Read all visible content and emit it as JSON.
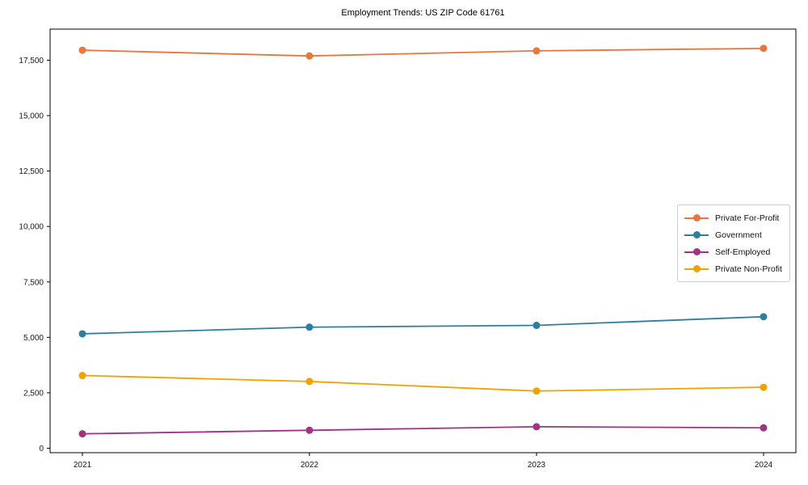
{
  "chart_data": {
    "type": "line",
    "title": "Employment Trends: US ZIP Code 61761",
    "x": [
      "2021",
      "2022",
      "2023",
      "2024"
    ],
    "series": [
      {
        "name": "Private For-Profit",
        "color": "#e8763d",
        "values": [
          17950,
          17690,
          17920,
          18030
        ]
      },
      {
        "name": "Government",
        "color": "#2d7f9e",
        "values": [
          5160,
          5460,
          5540,
          5930
        ]
      },
      {
        "name": "Self-Employed",
        "color": "#a03383",
        "values": [
          650,
          810,
          970,
          920
        ]
      },
      {
        "name": "Private Non-Profit",
        "color": "#f0a202",
        "values": [
          3280,
          3010,
          2580,
          2750
        ]
      }
    ],
    "yticks": {
      "values": [
        0,
        2500,
        5000,
        7500,
        10000,
        12500,
        15000,
        17500
      ],
      "labels": [
        "0",
        "2,500",
        "5,000",
        "7,500",
        "10,000",
        "12,500",
        "15,000",
        "17,500"
      ]
    },
    "ylim": [
      -200,
      18900
    ],
    "xlabel": "",
    "ylabel": "",
    "grid": false,
    "legend_position": "center-right",
    "marker": "circle",
    "frame_color": "#000000"
  }
}
